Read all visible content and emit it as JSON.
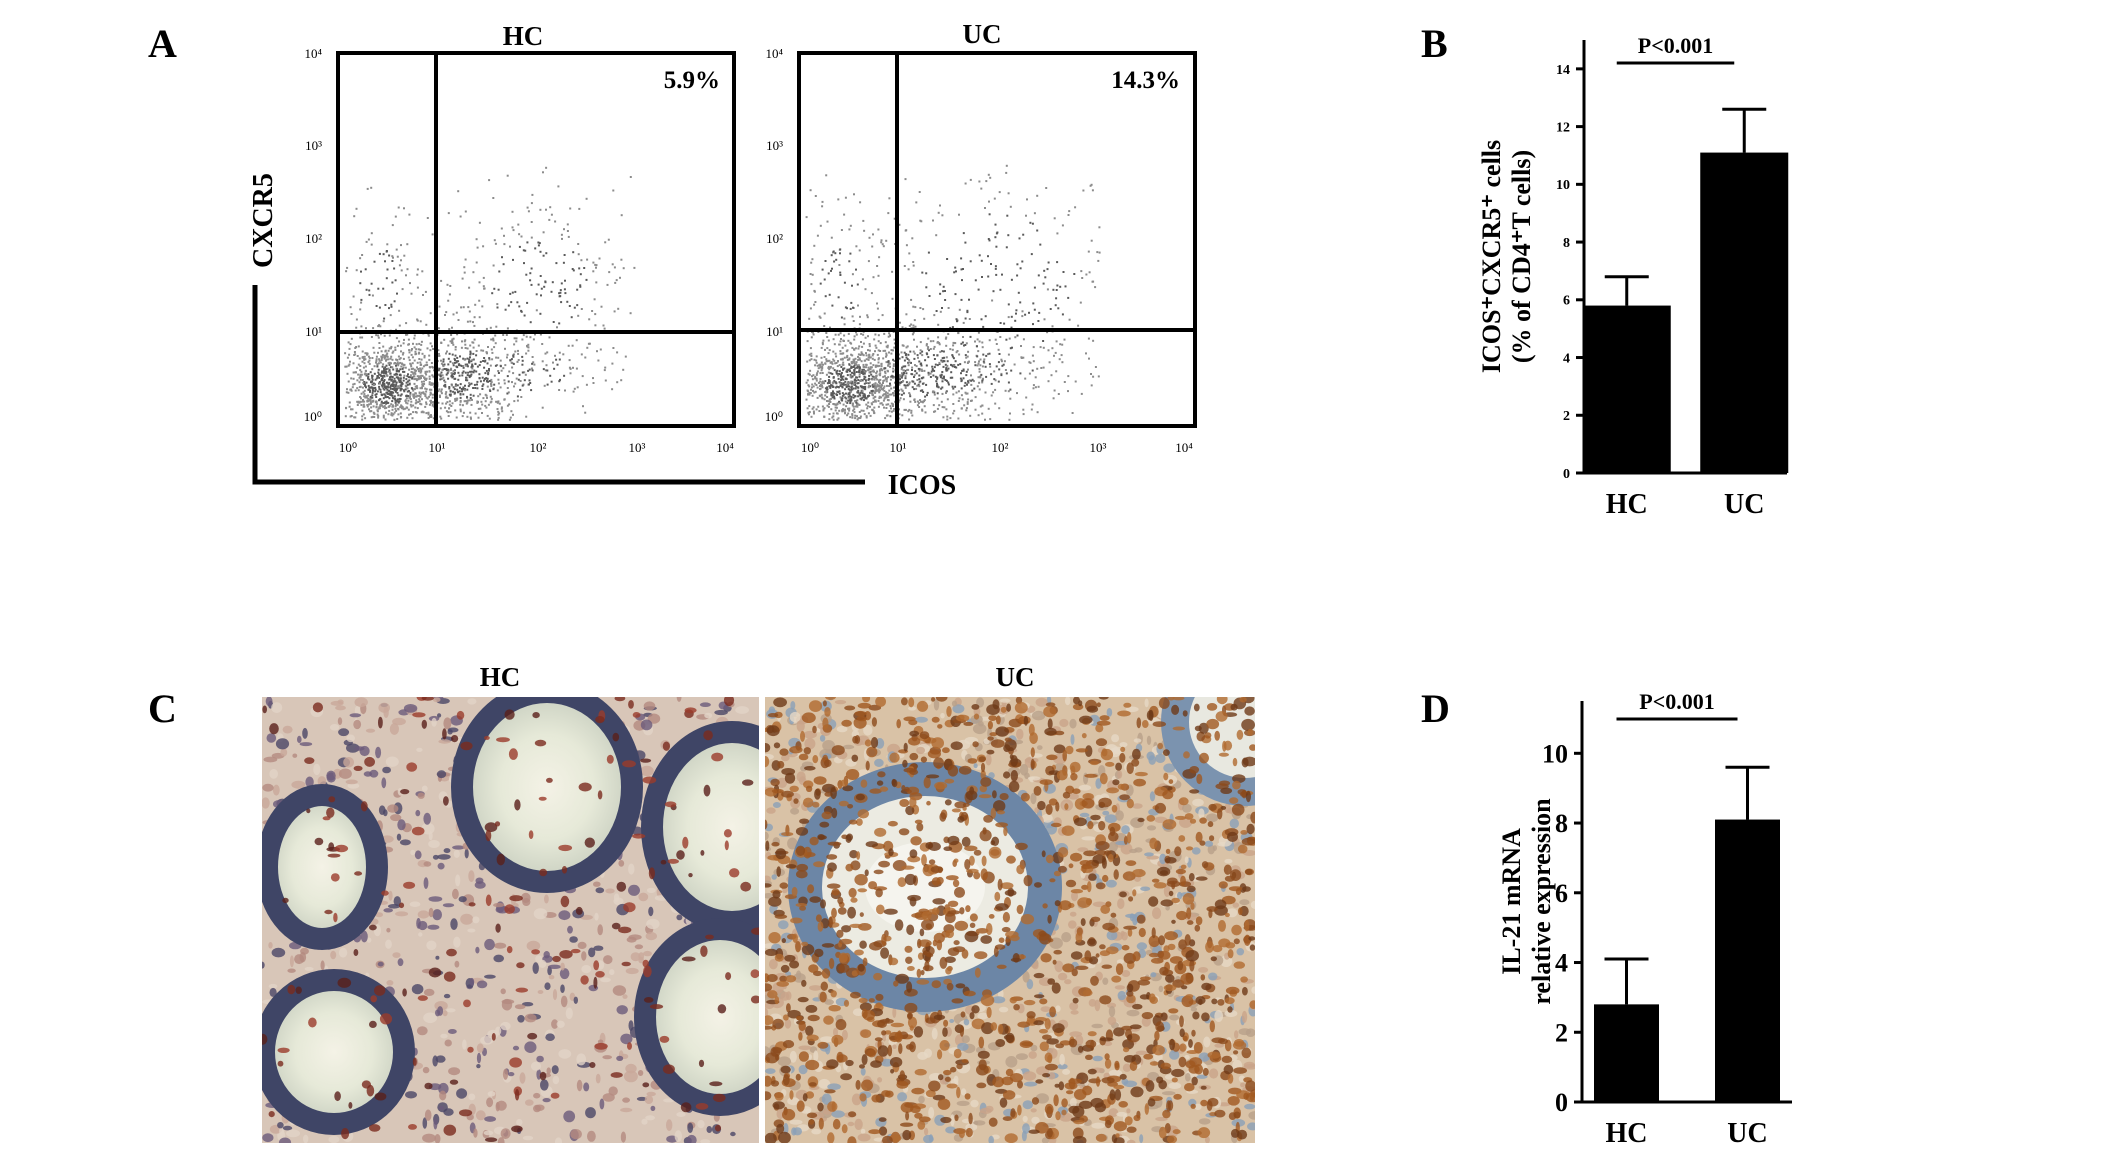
{
  "panels": {
    "a": "A",
    "b": "B",
    "c": "C",
    "d": "D"
  },
  "flow": {
    "y_axis_label": "CXCR5",
    "x_axis_label": "ICOS",
    "tick_labels": [
      "10⁰",
      "10¹",
      "10²",
      "10³",
      "10⁴"
    ],
    "plots": [
      {
        "title": "HC",
        "percent": "5.9%"
      },
      {
        "title": "UC",
        "percent": "14.3%"
      }
    ]
  },
  "histology": {
    "labels": [
      "HC",
      "UC"
    ]
  },
  "chart_data": [
    {
      "type": "bar",
      "panel": "B",
      "categories": [
        "HC",
        "UC"
      ],
      "values": [
        5.8,
        11.1
      ],
      "errors": [
        1.0,
        1.5
      ],
      "ylabel_line1": "ICOS⁺CXCR5⁺ cells",
      "ylabel_line2": "(% of CD4⁺T cells)",
      "ylim": [
        0,
        15
      ],
      "yticks": [
        0,
        2,
        4,
        6,
        8,
        10,
        12,
        14
      ],
      "annotation": "P<0.001"
    },
    {
      "type": "bar",
      "panel": "D",
      "categories": [
        "HC",
        "UC"
      ],
      "values": [
        2.8,
        8.1
      ],
      "errors": [
        1.3,
        1.5
      ],
      "ylabel_line1": "IL-21 mRNA",
      "ylabel_line2": "relative expression",
      "ylim": [
        0,
        11.5
      ],
      "yticks": [
        0,
        2,
        4,
        6,
        8,
        10
      ],
      "annotation": "P<0.001"
    }
  ]
}
